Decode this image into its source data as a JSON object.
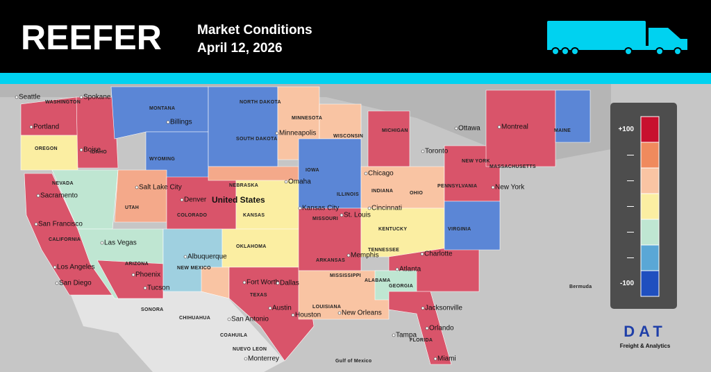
{
  "header": {
    "title": "REEFER",
    "subtitle": "Market Conditions",
    "date": "April 12, 2026"
  },
  "legend": {
    "labels": [
      "+100",
      "—",
      "—",
      "—",
      "—",
      "—",
      "-100"
    ]
  },
  "logo": {
    "name": "DAT",
    "tagline": "Freight & Analytics"
  },
  "map": {
    "country_label": "United States",
    "cities": [
      "Seattle",
      "Spokane",
      "Portland",
      "Boise",
      "Sacramento",
      "San Francisco",
      "Los Angeles",
      "San Diego",
      "Las Vegas",
      "Phoenix",
      "Tucson",
      "Salt Lake City",
      "Denver",
      "Albuquerque",
      "Billings",
      "Minneapolis",
      "Omaha",
      "Kansas City",
      "Chicago",
      "St. Louis",
      "Cincinnati",
      "Memphis",
      "Fort Worth",
      "Dallas",
      "Austin",
      "San Antonio",
      "Houston",
      "New Orleans",
      "Atlanta",
      "Charlotte",
      "Jacksonville",
      "Orlando",
      "Tampa",
      "Miami",
      "New York",
      "Toronto",
      "Ottawa",
      "Montreal",
      "Monterrey"
    ],
    "states": [
      "WASHINGTON",
      "OREGON",
      "IDAHO",
      "MONTANA",
      "WYOMING",
      "NEVADA",
      "UTAH",
      "COLORADO",
      "CALIFORNIA",
      "ARIZONA",
      "NEW MEXICO",
      "NORTH DAKOTA",
      "SOUTH DAKOTA",
      "NEBRASKA",
      "KANSAS",
      "OKLAHOMA",
      "TEXAS",
      "MINNESOTA",
      "IOWA",
      "MISSOURI",
      "ARKANSAS",
      "LOUISIANA",
      "MISSISSIPPI",
      "ALABAMA",
      "GEORGIA",
      "FLORIDA",
      "TENNESSEE",
      "KENTUCKY",
      "ILLINOIS",
      "INDIANA",
      "OHIO",
      "MICHIGAN",
      "WISCONSIN",
      "PENNSYLVANIA",
      "NEW YORK",
      "VIRGINIA",
      "MAINE",
      "MASSACHUSETTS"
    ],
    "other": [
      "Bermuda",
      "Gulf of Mexico",
      "SONORA",
      "CHIHUAHUA",
      "COAHUILA",
      "NUEVO LEON"
    ]
  }
}
